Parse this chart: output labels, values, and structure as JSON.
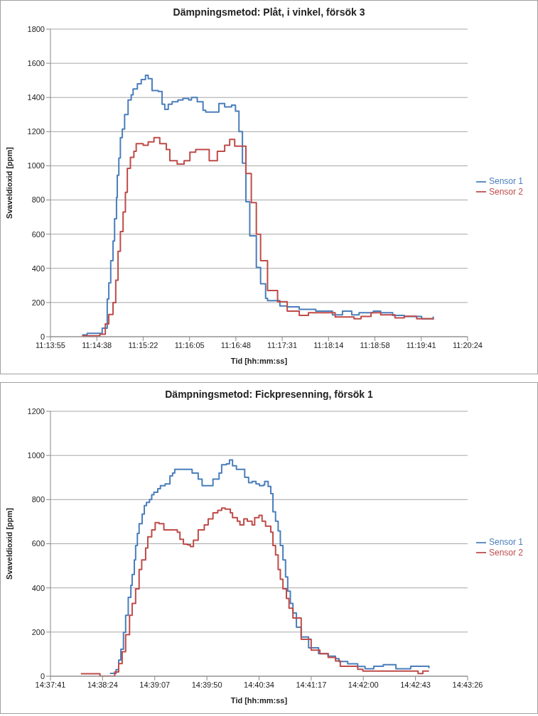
{
  "chart_data": [
    {
      "type": "step",
      "title": "Dämpningsmetod: Plåt, i vinkel, försök 3",
      "xlabel": "Tid [hh:mm:ss]",
      "ylabel": "Svaveldioxid [ppm]",
      "grid": "y",
      "legend": "right",
      "xlim": [
        11.232,
        11.34
      ],
      "xticks": [
        {
          "value": 11.232,
          "label": "11:13:55"
        },
        {
          "value": 11.244,
          "label": "11:14:38"
        },
        {
          "value": 11.256,
          "label": "11:15:22"
        },
        {
          "value": 11.268,
          "label": "11:16:05"
        },
        {
          "value": 11.28,
          "label": "11:16:48"
        },
        {
          "value": 11.292,
          "label": "11:17:31"
        },
        {
          "value": 11.304,
          "label": "11:18:14"
        },
        {
          "value": 11.316,
          "label": "11:18:58"
        },
        {
          "value": 11.328,
          "label": "11:19:41"
        },
        {
          "value": 11.34,
          "label": "11:20:24"
        }
      ],
      "ylim": [
        0,
        1800
      ],
      "yticks": [
        0,
        200,
        400,
        600,
        800,
        1000,
        1200,
        1400,
        1600,
        1800
      ],
      "series": [
        {
          "name": "Sensor 1",
          "color": "#4a7ebb",
          "x": [
            11.2402,
            11.2415,
            11.2452,
            11.2454,
            11.2467,
            11.2471,
            11.2476,
            11.2482,
            11.2486,
            11.2491,
            11.2493,
            11.2497,
            11.2501,
            11.2506,
            11.2512,
            11.2521,
            11.2529,
            11.2534,
            11.2545,
            11.2555,
            11.2566,
            11.2573,
            11.2583,
            11.2599,
            11.2609,
            11.2616,
            11.2625,
            11.2635,
            11.265,
            11.2663,
            11.2678,
            11.2685,
            11.27,
            11.2715,
            11.2722,
            11.275,
            11.2756,
            11.2771,
            11.2789,
            11.2799,
            11.2808,
            11.2817,
            11.2826,
            11.2836,
            11.2853,
            11.2864,
            11.2877,
            11.2882,
            11.2914,
            11.2933,
            11.2964,
            11.3007,
            11.305,
            11.3076,
            11.31,
            11.3119,
            11.3156,
            11.3175,
            11.3206,
            11.3236,
            11.3281,
            11.3311
          ],
          "values": [
            10,
            20,
            20,
            50,
            220,
            315,
            445,
            560,
            690,
            815,
            945,
            1045,
            1165,
            1215,
            1300,
            1385,
            1415,
            1450,
            1480,
            1505,
            1530,
            1510,
            1440,
            1435,
            1360,
            1330,
            1360,
            1375,
            1385,
            1395,
            1385,
            1400,
            1375,
            1325,
            1315,
            1315,
            1365,
            1345,
            1355,
            1320,
            1200,
            1015,
            790,
            590,
            405,
            310,
            225,
            211,
            180,
            175,
            160,
            150,
            128,
            150,
            128,
            140,
            150,
            140,
            125,
            118,
            105,
            118
          ]
        },
        {
          "name": "Sensor 2",
          "color": "#be4b48",
          "x": [
            11.2402,
            11.2448,
            11.2462,
            11.2471,
            11.2482,
            11.2489,
            11.2495,
            11.2501,
            11.2508,
            11.2514,
            11.2519,
            11.2527,
            11.2536,
            11.2542,
            11.256,
            11.2573,
            11.2588,
            11.2603,
            11.262,
            11.2629,
            11.2648,
            11.2666,
            11.2681,
            11.2696,
            11.2713,
            11.2731,
            11.2746,
            11.2752,
            11.2771,
            11.2784,
            11.2797,
            11.2815,
            11.2826,
            11.284,
            11.2853,
            11.2864,
            11.2882,
            11.2908,
            11.2933,
            11.2964,
            11.2988,
            11.3039,
            11.3057,
            11.3106,
            11.3124,
            11.315,
            11.3175,
            11.3212,
            11.3236,
            11.3268,
            11.3311
          ],
          "values": [
            5,
            15,
            75,
            130,
            200,
            330,
            500,
            615,
            730,
            845,
            985,
            1050,
            1085,
            1130,
            1120,
            1140,
            1165,
            1130,
            1095,
            1030,
            1010,
            1030,
            1080,
            1095,
            1095,
            1030,
            1030,
            1085,
            1120,
            1155,
            1115,
            1115,
            955,
            785,
            600,
            445,
            270,
            205,
            150,
            125,
            140,
            140,
            115,
            105,
            118,
            140,
            128,
            110,
            120,
            105,
            100
          ]
        }
      ]
    },
    {
      "type": "step",
      "title": "Dämpningsmetod: Fickpresenning, försök 1",
      "xlabel": "Tid [hh:mm:ss]",
      "ylabel": "Svaveldioxid [ppm]",
      "grid": "y",
      "legend": "right",
      "xlim": [
        14.628,
        14.724
      ],
      "xticks": [
        {
          "value": 14.628,
          "label": "14:37:41"
        },
        {
          "value": 14.64,
          "label": "14:38:24"
        },
        {
          "value": 14.652,
          "label": "14:39:07"
        },
        {
          "value": 14.664,
          "label": "14:39:50"
        },
        {
          "value": 14.676,
          "label": "14:40:34"
        },
        {
          "value": 14.688,
          "label": "14:41:17"
        },
        {
          "value": 14.7,
          "label": "14:42:00"
        },
        {
          "value": 14.712,
          "label": "14:42:43"
        },
        {
          "value": 14.724,
          "label": "14:43:26"
        }
      ],
      "ylim": [
        0,
        1200
      ],
      "yticks": [
        0,
        200,
        400,
        600,
        800,
        1000,
        1200
      ],
      "series": [
        {
          "name": "Sensor 1",
          "color": "#4a7ebb",
          "x": [
            14.6417,
            14.6431,
            14.6437,
            14.6442,
            14.6448,
            14.6453,
            14.6459,
            14.6465,
            14.6468,
            14.6473,
            14.6476,
            14.648,
            14.6484,
            14.6491,
            14.6496,
            14.6501,
            14.6508,
            14.6513,
            14.6518,
            14.6527,
            14.6533,
            14.6544,
            14.6555,
            14.6561,
            14.6566,
            14.6598,
            14.6606,
            14.662,
            14.6629,
            14.6646,
            14.6654,
            14.6668,
            14.6674,
            14.6685,
            14.6692,
            14.6699,
            14.6708,
            14.6719,
            14.6727,
            14.6736,
            14.6744,
            14.6753,
            14.6761,
            14.677,
            14.6773,
            14.6781,
            14.6787,
            14.6792,
            14.6798,
            14.6804,
            14.6809,
            14.6815,
            14.6821,
            14.6826,
            14.6832,
            14.6838,
            14.6846,
            14.6857,
            14.6874,
            14.6897,
            14.6919,
            14.6936,
            14.6944,
            14.6964,
            14.6987,
            14.7004,
            14.7024,
            14.7046,
            14.7075,
            14.7109,
            14.7145,
            14.7151
          ],
          "values": [
            13,
            30,
            73,
            122,
            199,
            276,
            357,
            412,
            461,
            527,
            592,
            647,
            691,
            734,
            773,
            787,
            800,
            822,
            833,
            849,
            863,
            871,
            907,
            920,
            937,
            937,
            920,
            893,
            863,
            863,
            893,
            920,
            958,
            962,
            980,
            953,
            937,
            937,
            901,
            877,
            882,
            871,
            863,
            866,
            882,
            860,
            827,
            745,
            702,
            658,
            592,
            527,
            450,
            385,
            330,
            286,
            222,
            178,
            129,
            102,
            91,
            80,
            67,
            56,
            44,
            34,
            45,
            52,
            34,
            45,
            45,
            36
          ]
        },
        {
          "name": "Sensor 2",
          "color": "#be4b48",
          "x": [
            14.635,
            14.6391,
            14.6394,
            14.6422,
            14.6428,
            14.6437,
            14.6445,
            14.6453,
            14.6462,
            14.6468,
            14.6476,
            14.6484,
            14.649,
            14.6499,
            14.6504,
            14.6513,
            14.6521,
            14.653,
            14.6541,
            14.6561,
            14.6572,
            14.6578,
            14.6586,
            14.6595,
            14.6602,
            14.6609,
            14.662,
            14.6634,
            14.6643,
            14.6654,
            14.6665,
            14.6674,
            14.6682,
            14.6694,
            14.6699,
            14.671,
            14.6716,
            14.6725,
            14.6733,
            14.6744,
            14.675,
            14.676,
            14.6767,
            14.6775,
            14.6787,
            14.6792,
            14.6798,
            14.6804,
            14.6809,
            14.6815,
            14.6823,
            14.6829,
            14.6838,
            14.6857,
            14.688,
            14.69,
            14.6919,
            14.6936,
            14.6947,
            14.6987,
            14.6999,
            14.7126,
            14.7137,
            14.7151
          ],
          "values": [
            11,
            11,
            0,
            0,
            19,
            57,
            111,
            188,
            276,
            330,
            396,
            483,
            527,
            581,
            631,
            663,
            696,
            691,
            663,
            663,
            652,
            620,
            598,
            595,
            587,
            616,
            663,
            685,
            713,
            740,
            751,
            762,
            757,
            740,
            718,
            702,
            685,
            713,
            702,
            685,
            718,
            729,
            702,
            680,
            652,
            592,
            549,
            483,
            439,
            396,
            352,
            308,
            264,
            167,
            118,
            102,
            85,
            69,
            45,
            31,
            23,
            12,
            23,
            23
          ]
        }
      ]
    }
  ]
}
